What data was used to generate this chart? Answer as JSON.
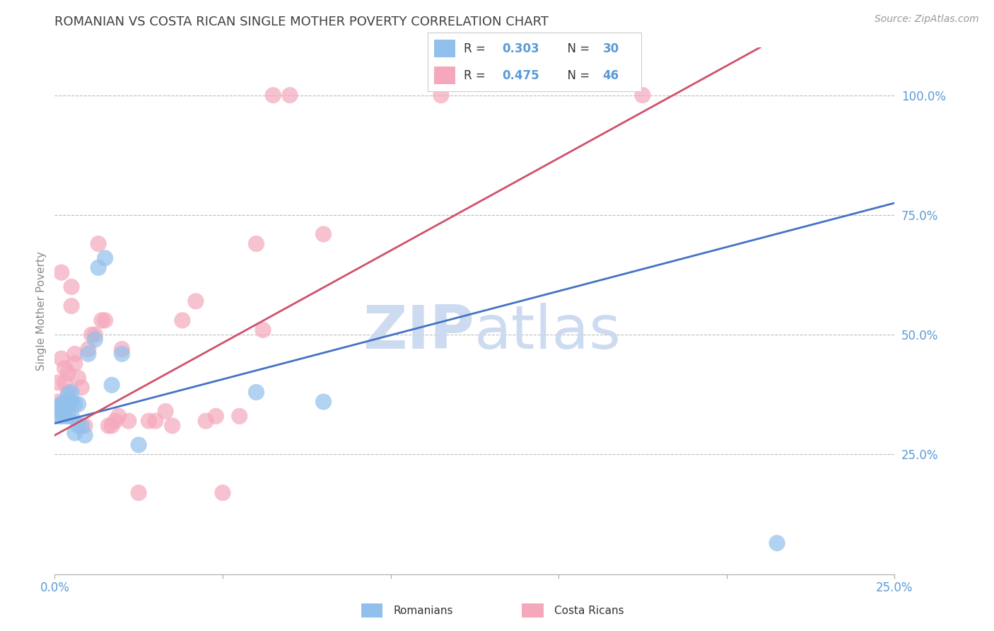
{
  "title": "ROMANIAN VS COSTA RICAN SINGLE MOTHER POVERTY CORRELATION CHART",
  "source": "Source: ZipAtlas.com",
  "ylabel": "Single Mother Poverty",
  "xlim": [
    0.0,
    0.25
  ],
  "ylim": [
    0.0,
    1.1
  ],
  "xticks": [
    0.0,
    0.05,
    0.1,
    0.15,
    0.2,
    0.25
  ],
  "xtick_labels_show": [
    "0.0%",
    "",
    "",
    "",
    "",
    "25.0%"
  ],
  "yticks_right": [
    0.25,
    0.5,
    0.75,
    1.0
  ],
  "ytick_right_labels": [
    "25.0%",
    "50.0%",
    "75.0%",
    "100.0%"
  ],
  "romanian_R": 0.303,
  "romanian_N": 30,
  "costa_rican_R": 0.475,
  "costa_rican_N": 46,
  "romanian_color": "#92C0EC",
  "costa_rican_color": "#F5A8BC",
  "trend_blue": "#4472C4",
  "trend_pink": "#D0506A",
  "watermark_color": "#C8D8F0",
  "grid_color": "#BBBBBB",
  "title_color": "#404040",
  "axis_label_color": "#888888",
  "right_tick_color": "#5B9BD5",
  "bottom_tick_color": "#5B9BD5",
  "legend_box_bg": "#FFFFFF",
  "legend_border": "#CCCCCC",
  "legend_text_color": "#333333",
  "legend_value_color": "#5B9BD5",
  "romanian_x": [
    0.001,
    0.001,
    0.002,
    0.002,
    0.002,
    0.003,
    0.003,
    0.003,
    0.004,
    0.004,
    0.004,
    0.005,
    0.005,
    0.005,
    0.006,
    0.006,
    0.007,
    0.007,
    0.008,
    0.009,
    0.01,
    0.012,
    0.013,
    0.015,
    0.017,
    0.02,
    0.025,
    0.06,
    0.08,
    0.215
  ],
  "romanian_y": [
    0.35,
    0.33,
    0.355,
    0.34,
    0.33,
    0.36,
    0.35,
    0.33,
    0.375,
    0.355,
    0.33,
    0.38,
    0.36,
    0.33,
    0.355,
    0.295,
    0.355,
    0.31,
    0.31,
    0.29,
    0.46,
    0.49,
    0.64,
    0.66,
    0.395,
    0.46,
    0.27,
    0.38,
    0.36,
    0.065
  ],
  "costa_rican_x": [
    0.001,
    0.001,
    0.002,
    0.002,
    0.002,
    0.003,
    0.003,
    0.004,
    0.004,
    0.005,
    0.005,
    0.006,
    0.006,
    0.007,
    0.008,
    0.009,
    0.01,
    0.011,
    0.012,
    0.013,
    0.014,
    0.015,
    0.016,
    0.017,
    0.018,
    0.019,
    0.02,
    0.022,
    0.025,
    0.028,
    0.03,
    0.033,
    0.035,
    0.038,
    0.042,
    0.045,
    0.048,
    0.05,
    0.055,
    0.06,
    0.062,
    0.065,
    0.07,
    0.08,
    0.115,
    0.175
  ],
  "costa_rican_y": [
    0.36,
    0.4,
    0.45,
    0.35,
    0.63,
    0.43,
    0.4,
    0.42,
    0.38,
    0.6,
    0.56,
    0.46,
    0.44,
    0.41,
    0.39,
    0.31,
    0.47,
    0.5,
    0.5,
    0.69,
    0.53,
    0.53,
    0.31,
    0.31,
    0.32,
    0.33,
    0.47,
    0.32,
    0.17,
    0.32,
    0.32,
    0.34,
    0.31,
    0.53,
    0.57,
    0.32,
    0.33,
    0.17,
    0.33,
    0.69,
    0.51,
    1.0,
    1.0,
    0.71,
    1.0,
    1.0
  ],
  "blue_trend_x0": 0.0,
  "blue_trend_y0": 0.315,
  "blue_trend_x1": 0.25,
  "blue_trend_y1": 0.775,
  "pink_trend_x0": 0.0,
  "pink_trend_y0": 0.29,
  "pink_trend_x1": 0.21,
  "pink_trend_y1": 1.1
}
